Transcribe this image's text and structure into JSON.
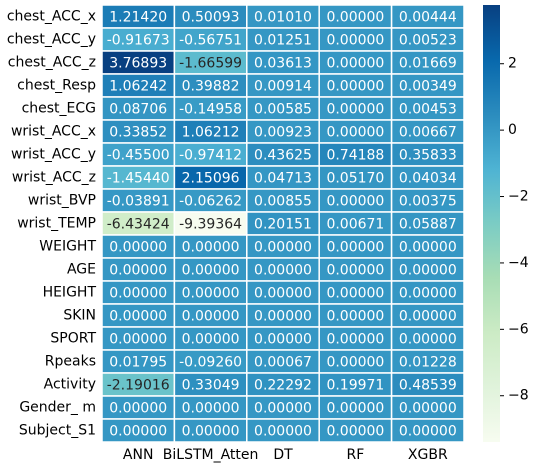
{
  "chart_data": {
    "type": "heatmap",
    "colormap": "GnBu",
    "rows": [
      "chest_ACC_x",
      "chest_ACC_y",
      "chest_ACC_z",
      "chest_Resp",
      "chest_ECG",
      "wrist_ACC_x",
      "wrist_ACC_y",
      "wrist_ACC_z",
      "wrist_BVP",
      "wrist_TEMP",
      "WEIGHT",
      "AGE",
      "HEIGHT",
      "SKIN",
      "SPORT",
      "Rpeaks",
      "Activity",
      "Gender_ m",
      "Subject_S1"
    ],
    "columns": [
      "ANN",
      "BiLSTM_Atten",
      "DT",
      "RF",
      "XGBR"
    ],
    "values": [
      [
        1.2142,
        0.50093,
        0.0101,
        0,
        0.00444
      ],
      [
        -0.91673,
        -0.56751,
        0.01251,
        0,
        0.00523
      ],
      [
        3.76893,
        -1.66599,
        0.03613,
        0,
        0.01669
      ],
      [
        1.06242,
        0.39882,
        0.00914,
        0,
        0.00349
      ],
      [
        0.08706,
        -0.14958,
        0.00585,
        0,
        0.00453
      ],
      [
        0.33852,
        1.06212,
        0.00923,
        0,
        0.00667
      ],
      [
        -0.455,
        -0.97412,
        0.43625,
        0.74188,
        0.35833
      ],
      [
        -1.4544,
        2.15096,
        0.04713,
        0.0517,
        0.04034
      ],
      [
        -0.03891,
        -0.06262,
        0.00855,
        0,
        0.00375
      ],
      [
        -6.43424,
        -9.39364,
        0.20151,
        0.00671,
        0.05887
      ],
      [
        0,
        0,
        0,
        0,
        0
      ],
      [
        0,
        0,
        0,
        0,
        0
      ],
      [
        0,
        0,
        0,
        0,
        0
      ],
      [
        0,
        0,
        0,
        0,
        0
      ],
      [
        0,
        0,
        0,
        0,
        0
      ],
      [
        0.01795,
        -0.0926,
        0.00067,
        0,
        0.01228
      ],
      [
        -2.19016,
        0.33049,
        0.22292,
        0.19971,
        0.48539
      ],
      [
        0,
        0,
        0,
        0,
        0
      ],
      [
        0,
        0,
        0,
        0,
        0
      ]
    ],
    "value_labels": [
      [
        "1.21420",
        "0.50093",
        "0.01010",
        "0.00000",
        "0.00444"
      ],
      [
        "-0.91673",
        "-0.56751",
        "0.01251",
        "0.00000",
        "0.00523"
      ],
      [
        "3.76893",
        "-1.66599",
        "0.03613",
        "0.00000",
        "0.01669"
      ],
      [
        "1.06242",
        "0.39882",
        "0.00914",
        "0.00000",
        "0.00349"
      ],
      [
        "0.08706",
        "-0.14958",
        "0.00585",
        "0.00000",
        "0.00453"
      ],
      [
        "0.33852",
        "1.06212",
        "0.00923",
        "0.00000",
        "0.00667"
      ],
      [
        "-0.45500",
        "-0.97412",
        "0.43625",
        "0.74188",
        "0.35833"
      ],
      [
        "-1.45440",
        "2.15096",
        "0.04713",
        "0.05170",
        "0.04034"
      ],
      [
        "-0.03891",
        "-0.06262",
        "0.00855",
        "0.00000",
        "0.00375"
      ],
      [
        "-6.43424",
        "-9.39364",
        "0.20151",
        "0.00671",
        "0.05887"
      ],
      [
        "0.00000",
        "0.00000",
        "0.00000",
        "0.00000",
        "0.00000"
      ],
      [
        "0.00000",
        "0.00000",
        "0.00000",
        "0.00000",
        "0.00000"
      ],
      [
        "0.00000",
        "0.00000",
        "0.00000",
        "0.00000",
        "0.00000"
      ],
      [
        "0.00000",
        "0.00000",
        "0.00000",
        "0.00000",
        "0.00000"
      ],
      [
        "0.00000",
        "0.00000",
        "0.00000",
        "0.00000",
        "0.00000"
      ],
      [
        "0.01795",
        "-0.09260",
        "0.00067",
        "0.00000",
        "0.01228"
      ],
      [
        "-2.19016",
        "0.33049",
        "0.22292",
        "0.19971",
        "0.48539"
      ],
      [
        "0.00000",
        "0.00000",
        "0.00000",
        "0.00000",
        "0.00000"
      ],
      [
        "0.00000",
        "0.00000",
        "0.00000",
        "0.00000",
        "0.00000"
      ]
    ],
    "zlim": [
      -9.39364,
      3.76893
    ],
    "zticks": [
      2,
      0,
      {
        "value": -2,
        "label": "−2"
      },
      {
        "value": -4,
        "label": "−4"
      },
      {
        "value": -6,
        "label": "−6"
      },
      {
        "value": -8,
        "label": "−8"
      }
    ]
  }
}
